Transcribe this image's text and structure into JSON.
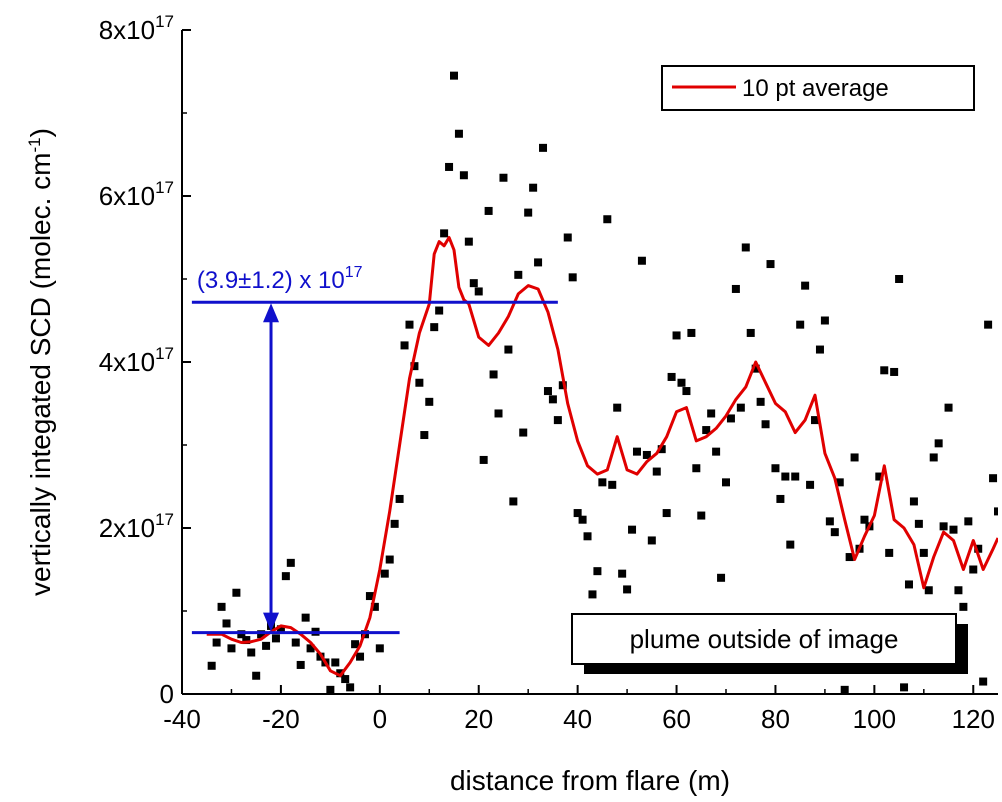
{
  "chart_data": {
    "type": "scatter",
    "xlabel": "distance from flare (m)",
    "ylabel": "vertically integated SCD (molec. cm",
    "ylabel_sup": "-1",
    "ylabel_close": ")",
    "xlim": [
      -40,
      125
    ],
    "ylim": [
      0,
      8e+17
    ],
    "x_ticks": [
      -40,
      -20,
      0,
      20,
      40,
      60,
      80,
      100,
      120
    ],
    "x_tick_labels": [
      "-40",
      "-20",
      "0",
      "20",
      "40",
      "60",
      "80",
      "100",
      "120"
    ],
    "y_ticks": [
      0,
      2e+17,
      4e+17,
      6e+17,
      8e+17
    ],
    "y_tick_labels": [
      {
        "base": "0",
        "sup": ""
      },
      {
        "base": "2x10",
        "sup": "17"
      },
      {
        "base": "4x10",
        "sup": "17"
      },
      {
        "base": "6x10",
        "sup": "17"
      },
      {
        "base": "8x10",
        "sup": "17"
      }
    ],
    "legend_position": "top-right",
    "legend": {
      "label": "10 pt average",
      "color": "#e00000"
    },
    "scatter_color": "#000000",
    "annotation_color": "#1010cc",
    "annotation": {
      "base": "(3.9±1.2) x 10",
      "sup": "17",
      "upper_level": 4.72e+17,
      "lower_level": 7.4e+16
    },
    "note": "plume outside of image",
    "points": [
      [
        -34,
        3.4e+16
      ],
      [
        -33,
        6.2e+16
      ],
      [
        -32,
        1.05e+17
      ],
      [
        -31,
        8.5e+16
      ],
      [
        -30,
        5.5e+16
      ],
      [
        -29,
        1.22e+17
      ],
      [
        -28,
        7.2e+16
      ],
      [
        -27,
        6.5e+16
      ],
      [
        -26,
        5e+16
      ],
      [
        -25,
        2.2e+16
      ],
      [
        -24,
        7.2e+16
      ],
      [
        -23,
        5.8e+16
      ],
      [
        -22,
        8.2e+16
      ],
      [
        -21,
        6.7e+16
      ],
      [
        -20,
        7.8e+16
      ],
      [
        -19,
        1.42e+17
      ],
      [
        -18,
        1.58e+17
      ],
      [
        -17,
        6.2e+16
      ],
      [
        -16,
        3.5e+16
      ],
      [
        -15,
        9.2e+16
      ],
      [
        -14,
        5.5e+16
      ],
      [
        -13,
        7.5e+16
      ],
      [
        -12,
        4.5e+16
      ],
      [
        -11,
        3.8e+16
      ],
      [
        -10,
        5000000000000000.0
      ],
      [
        -9,
        3.8e+16
      ],
      [
        -8,
        2.5e+16
      ],
      [
        -7,
        1.8e+16
      ],
      [
        -6,
        8000000000000000.0
      ],
      [
        -5,
        6e+16
      ],
      [
        -4,
        4.5e+16
      ],
      [
        -3,
        7.2e+16
      ],
      [
        -2,
        1.18e+17
      ],
      [
        -1,
        1.05e+17
      ],
      [
        0,
        5.5e+16
      ],
      [
        1,
        1.45e+17
      ],
      [
        2,
        1.62e+17
      ],
      [
        3,
        2.05e+17
      ],
      [
        4,
        2.35e+17
      ],
      [
        5,
        4.2e+17
      ],
      [
        6,
        4.45e+17
      ],
      [
        7,
        3.95e+17
      ],
      [
        8,
        3.75e+17
      ],
      [
        9,
        3.12e+17
      ],
      [
        10,
        3.52e+17
      ],
      [
        11,
        4.42e+17
      ],
      [
        12,
        4.62e+17
      ],
      [
        13,
        5.55e+17
      ],
      [
        14,
        6.35e+17
      ],
      [
        15,
        7.45e+17
      ],
      [
        16,
        6.75e+17
      ],
      [
        17,
        6.25e+17
      ],
      [
        18,
        5.45e+17
      ],
      [
        19,
        4.95e+17
      ],
      [
        20,
        4.85e+17
      ],
      [
        21,
        2.82e+17
      ],
      [
        22,
        5.82e+17
      ],
      [
        23,
        3.85e+17
      ],
      [
        24,
        3.38e+17
      ],
      [
        25,
        6.22e+17
      ],
      [
        26,
        4.15e+17
      ],
      [
        27,
        2.32e+17
      ],
      [
        28,
        5.05e+17
      ],
      [
        29,
        3.15e+17
      ],
      [
        30,
        5.8e+17
      ],
      [
        31,
        6.1e+17
      ],
      [
        32,
        5.2e+17
      ],
      [
        33,
        6.58e+17
      ],
      [
        34,
        3.65e+17
      ],
      [
        35,
        3.55e+17
      ],
      [
        36,
        3.3e+17
      ],
      [
        37,
        3.72e+17
      ],
      [
        38,
        5.5e+17
      ],
      [
        39,
        5.02e+17
      ],
      [
        40,
        2.18e+17
      ],
      [
        41,
        2.1e+17
      ],
      [
        42,
        1.9e+17
      ],
      [
        43,
        1.2e+17
      ],
      [
        44,
        1.48e+17
      ],
      [
        45,
        2.55e+17
      ],
      [
        46,
        5.72e+17
      ],
      [
        47,
        2.52e+17
      ],
      [
        48,
        3.45e+17
      ],
      [
        49,
        1.45e+17
      ],
      [
        50,
        1.26e+17
      ],
      [
        51,
        1.98e+17
      ],
      [
        52,
        2.92e+17
      ],
      [
        53,
        5.22e+17
      ],
      [
        54,
        2.88e+17
      ],
      [
        55,
        1.85e+17
      ],
      [
        56,
        2.68e+17
      ],
      [
        57,
        2.95e+17
      ],
      [
        58,
        2.18e+17
      ],
      [
        59,
        3.82e+17
      ],
      [
        60,
        4.32e+17
      ],
      [
        61,
        3.75e+17
      ],
      [
        62,
        3.65e+17
      ],
      [
        63,
        4.35e+17
      ],
      [
        64,
        2.72e+17
      ],
      [
        65,
        2.15e+17
      ],
      [
        66,
        3.18e+17
      ],
      [
        67,
        3.38e+17
      ],
      [
        68,
        2.92e+17
      ],
      [
        69,
        1.4e+17
      ],
      [
        70,
        2.55e+17
      ],
      [
        71,
        3.32e+17
      ],
      [
        72,
        4.88e+17
      ],
      [
        73,
        3.45e+17
      ],
      [
        74,
        5.38e+17
      ],
      [
        75,
        4.35e+17
      ],
      [
        76,
        3.92e+17
      ],
      [
        77,
        3.52e+17
      ],
      [
        78,
        3.25e+17
      ],
      [
        79,
        5.18e+17
      ],
      [
        80,
        2.72e+17
      ],
      [
        81,
        2.35e+17
      ],
      [
        82,
        2.62e+17
      ],
      [
        83,
        1.8e+17
      ],
      [
        84,
        2.62e+17
      ],
      [
        85,
        4.45e+17
      ],
      [
        86,
        4.92e+17
      ],
      [
        87,
        2.52e+17
      ],
      [
        88,
        3.3e+17
      ],
      [
        89,
        4.15e+17
      ],
      [
        90,
        4.5e+17
      ],
      [
        91,
        2.08e+17
      ],
      [
        92,
        1.95e+17
      ],
      [
        93,
        2.55e+17
      ],
      [
        94,
        5000000000000000.0
      ],
      [
        95,
        1.65e+17
      ],
      [
        96,
        2.85e+17
      ],
      [
        97,
        1.75e+17
      ],
      [
        98,
        2.1e+17
      ],
      [
        99,
        2.02e+17
      ],
      [
        100,
        3.8e+16
      ],
      [
        101,
        2.62e+17
      ],
      [
        102,
        3.9e+17
      ],
      [
        103,
        1.7e+17
      ],
      [
        104,
        3.88e+17
      ],
      [
        105,
        5e+17
      ],
      [
        106,
        8000000000000000.0
      ],
      [
        107,
        1.32e+17
      ],
      [
        108,
        2.32e+17
      ],
      [
        109,
        2.05e+17
      ],
      [
        110,
        1.7e+17
      ],
      [
        111,
        1.25e+17
      ],
      [
        112,
        2.85e+17
      ],
      [
        113,
        3.02e+17
      ],
      [
        114,
        2.02e+17
      ],
      [
        115,
        3.45e+17
      ],
      [
        116,
        1.98e+17
      ],
      [
        117,
        1.25e+17
      ],
      [
        118,
        1.05e+17
      ],
      [
        119,
        2.08e+17
      ],
      [
        120,
        1.5e+17
      ],
      [
        121,
        1.75e+17
      ],
      [
        122,
        1.5e+16
      ],
      [
        123,
        4.45e+17
      ],
      [
        124,
        2.6e+17
      ],
      [
        125,
        2.2e+17
      ]
    ],
    "series": [
      {
        "name": "10 pt average",
        "x": [
          -35,
          -32,
          -30,
          -28,
          -26,
          -24,
          -22,
          -20,
          -18,
          -16,
          -14,
          -12,
          -10,
          -8,
          -6,
          -4,
          -2,
          0,
          2,
          4,
          6,
          8,
          10,
          11,
          12,
          13,
          14,
          15,
          16,
          17,
          18,
          20,
          22,
          24,
          26,
          28,
          30,
          32,
          34,
          36,
          38,
          40,
          42,
          44,
          46,
          48,
          50,
          52,
          54,
          56,
          58,
          60,
          62,
          64,
          66,
          68,
          70,
          72,
          74,
          76,
          78,
          80,
          82,
          84,
          86,
          88,
          90,
          92,
          94,
          96,
          98,
          100,
          102,
          104,
          106,
          108,
          110,
          112,
          114,
          116,
          118,
          120,
          122,
          124,
          125
        ],
        "y": [
          7.2e+16,
          7.2e+16,
          6.6e+16,
          6.2e+16,
          6.3e+16,
          6.6e+16,
          7.5e+16,
          8.2e+16,
          8e+16,
          7.2e+16,
          6.2e+16,
          4.8e+16,
          2.8e+16,
          2.2e+16,
          3.8e+16,
          5.8e+16,
          9.2e+16,
          1.5e+17,
          2.2e+17,
          3e+17,
          3.8e+17,
          4.35e+17,
          4.7e+17,
          5.3e+17,
          5.45e+17,
          5.4e+17,
          5.5e+17,
          5.35e+17,
          4.9e+17,
          4.75e+17,
          4.7e+17,
          4.3e+17,
          4.2e+17,
          4.35e+17,
          4.55e+17,
          4.82e+17,
          4.92e+17,
          4.88e+17,
          4.6e+17,
          4.15e+17,
          3.5e+17,
          3.05e+17,
          2.75e+17,
          2.65e+17,
          2.7e+17,
          3.1e+17,
          2.7e+17,
          2.65e+17,
          2.8e+17,
          2.9e+17,
          3.1e+17,
          3.4e+17,
          3.45e+17,
          3.05e+17,
          3.1e+17,
          3.2e+17,
          3.35e+17,
          3.55e+17,
          3.7e+17,
          4e+17,
          3.75e+17,
          3.5e+17,
          3.4e+17,
          3.15e+17,
          3.3e+17,
          3.6e+17,
          2.9e+17,
          2.6e+17,
          2.1e+17,
          1.62e+17,
          1.9e+17,
          2.15e+17,
          2.75e+17,
          2.1e+17,
          2e+17,
          1.8e+17,
          1.28e+17,
          1.65e+17,
          1.95e+17,
          1.85e+17,
          1.5e+17,
          1.85e+17,
          1.5e+17,
          1.75e+17,
          1.88e+17
        ]
      }
    ]
  }
}
